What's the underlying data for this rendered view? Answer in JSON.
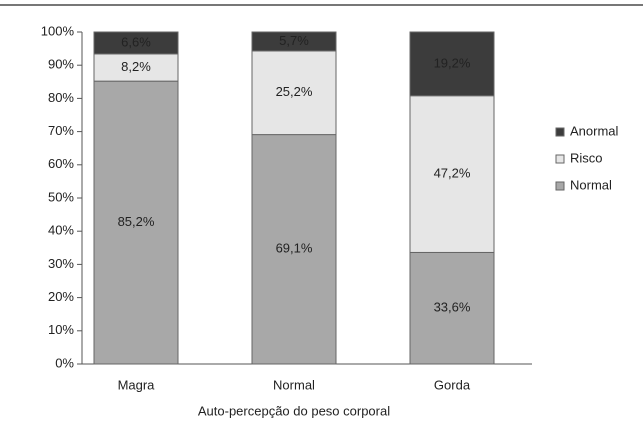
{
  "chart_data": {
    "type": "stacked_bar",
    "x_label": "Auto-percepção do peso corporal",
    "categories": [
      "Magra",
      "Normal",
      "Gorda"
    ],
    "series": [
      {
        "name": "Normal",
        "color": "#a8a8a8",
        "values": [
          85.2,
          69.1,
          33.6
        ],
        "value_labels": [
          "85,2%",
          "69,1%",
          "33,6%"
        ]
      },
      {
        "name": "Risco",
        "color": "#e6e6e6",
        "values": [
          8.2,
          25.2,
          47.2
        ],
        "value_labels": [
          "8,2%",
          "25,2%",
          "47,2%"
        ]
      },
      {
        "name": "Anormal",
        "color": "#3c3c3c",
        "values": [
          6.6,
          5.7,
          19.2
        ],
        "value_labels": [
          "6,6%",
          "5,7%",
          "19,2%"
        ]
      }
    ],
    "ylim": [
      0,
      100
    ],
    "yticks": [
      {
        "value": 0,
        "label": "0%"
      },
      {
        "value": 10,
        "label": "10%"
      },
      {
        "value": 20,
        "label": "20%"
      },
      {
        "value": 30,
        "label": "30%"
      },
      {
        "value": 40,
        "label": "40%"
      },
      {
        "value": 50,
        "label": "50%"
      },
      {
        "value": 60,
        "label": "60%"
      },
      {
        "value": 70,
        "label": "70%"
      },
      {
        "value": 80,
        "label": "80%"
      },
      {
        "value": 90,
        "label": "90%"
      },
      {
        "value": 100,
        "label": "100%"
      }
    ],
    "legend": "right"
  }
}
